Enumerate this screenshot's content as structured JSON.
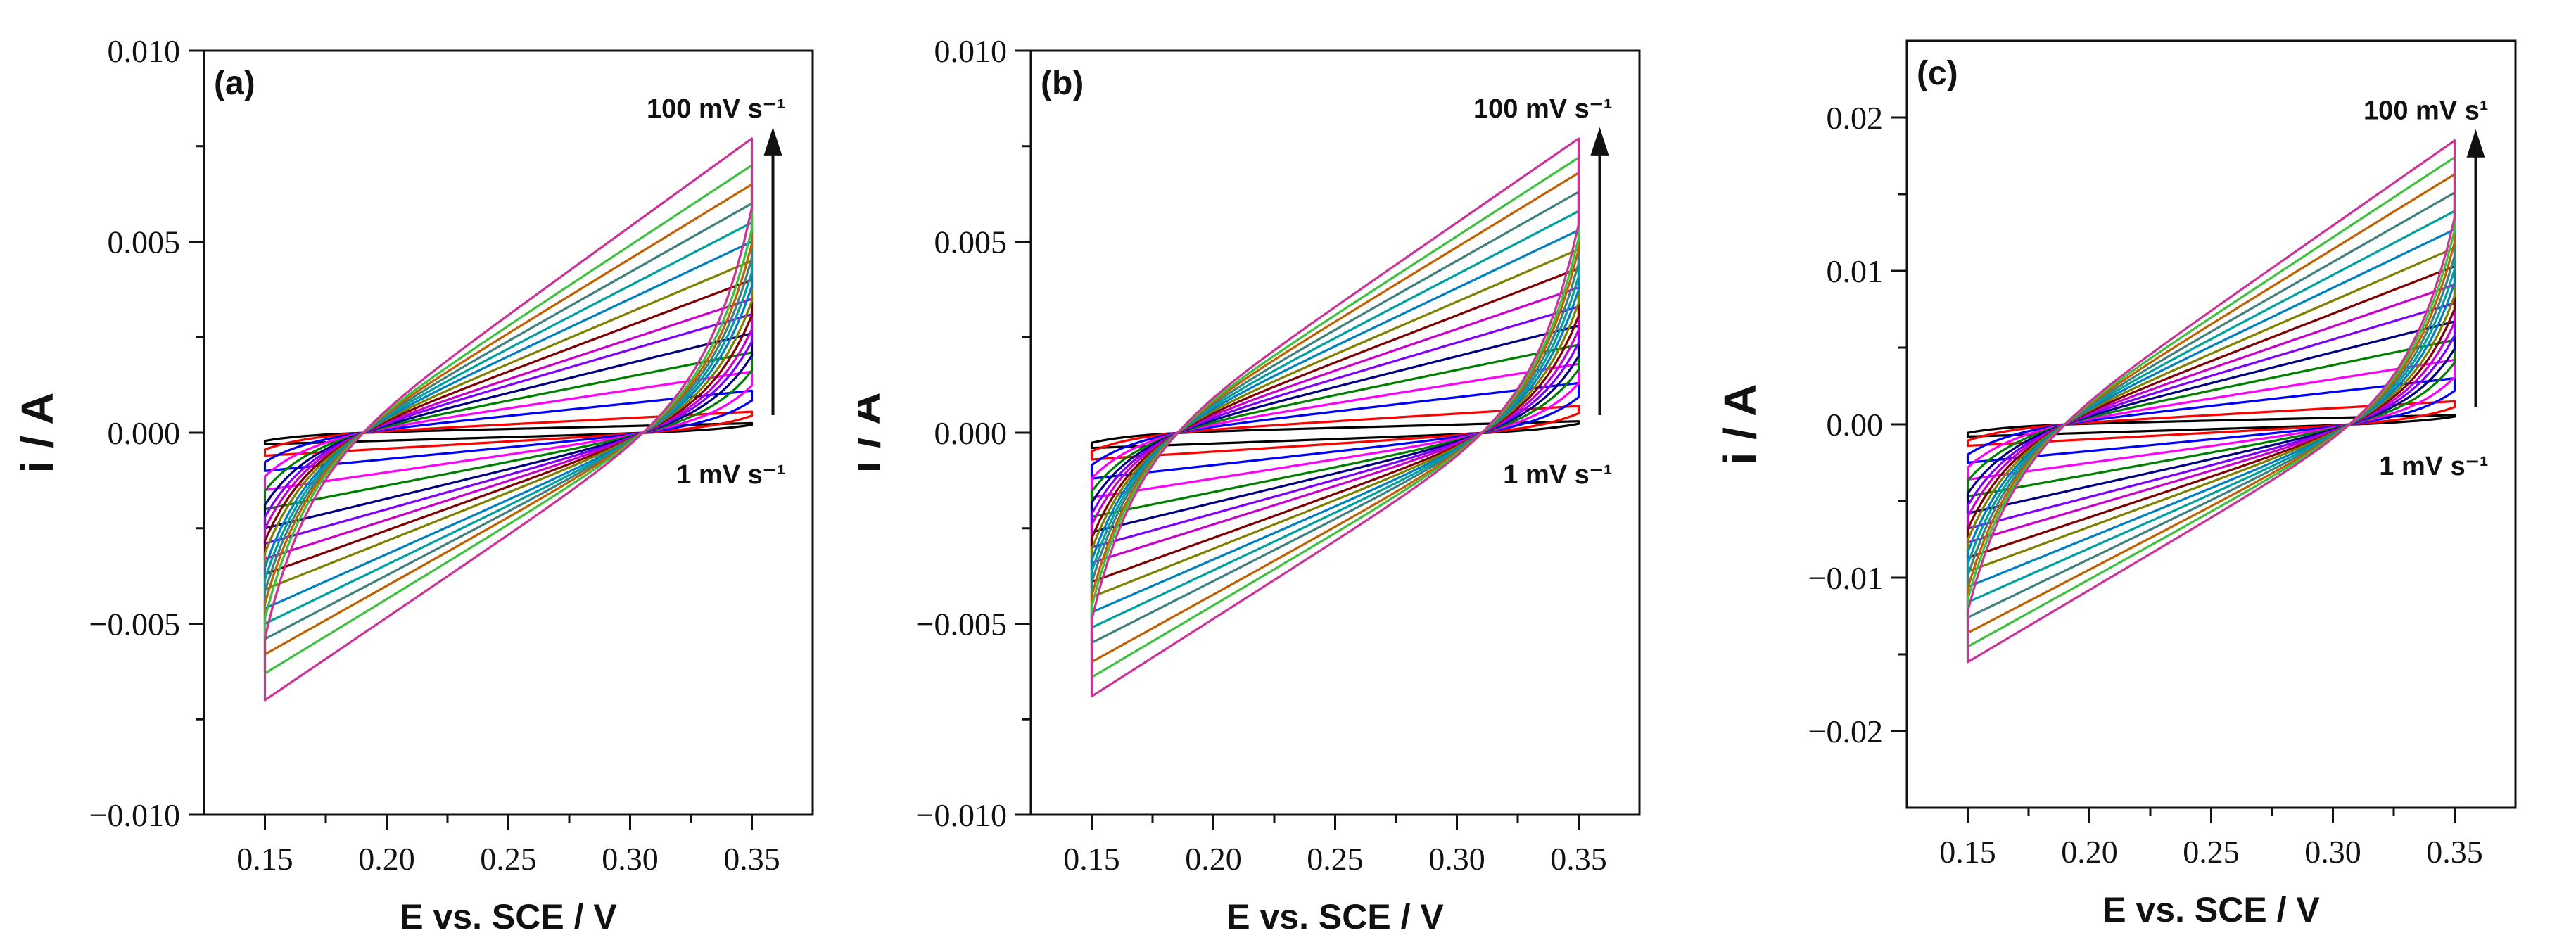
{
  "chart_data": [
    {
      "type": "line",
      "panel_label": "(a)",
      "xlabel": "E vs. SCE / V",
      "ylabel": "i / A",
      "xlim": [
        0.125,
        0.375
      ],
      "ylim": [
        -0.01,
        0.01
      ],
      "xticks": [
        0.15,
        0.2,
        0.25,
        0.3,
        0.35
      ],
      "xtick_labels": [
        "0.15",
        "0.20",
        "0.25",
        "0.30",
        "0.35"
      ],
      "yticks": [
        -0.01,
        -0.005,
        0.0,
        0.005,
        0.01
      ],
      "ytick_labels": [
        "−0.010",
        "−0.005",
        "0.000",
        "0.005",
        "0.010"
      ],
      "annotation_top": "100 mV s⁻¹",
      "annotation_bottom": "1 mV s⁻¹",
      "cv": {
        "e_min": 0.15,
        "e_max": 0.35,
        "cross_low": 0.183,
        "cross_high": 0.312,
        "i_max_end": 0.0077,
        "i_min_start": -0.007
      },
      "series": [
        {
          "color": "#000000",
          "values": [
            0.00025,
            -0.0003
          ]
        },
        {
          "color": "#ff0000",
          "values": [
            0.00055,
            -0.0006
          ]
        },
        {
          "color": "#0000ff",
          "values": [
            0.0011,
            -0.001
          ]
        },
        {
          "color": "#ff00ff",
          "values": [
            0.0016,
            -0.0015
          ]
        },
        {
          "color": "#008000",
          "values": [
            0.0021,
            -0.002
          ]
        },
        {
          "color": "#000080",
          "values": [
            0.0026,
            -0.0025
          ]
        },
        {
          "color": "#8000ff",
          "values": [
            0.0031,
            -0.0029
          ]
        },
        {
          "color": "#cc00cc",
          "values": [
            0.0035,
            -0.0033
          ]
        },
        {
          "color": "#800000",
          "values": [
            0.004,
            -0.0037
          ]
        },
        {
          "color": "#808000",
          "values": [
            0.0045,
            -0.0041
          ]
        },
        {
          "color": "#0080c0",
          "values": [
            0.005,
            -0.0046
          ]
        },
        {
          "color": "#00a0a0",
          "values": [
            0.0055,
            -0.005
          ]
        },
        {
          "color": "#408080",
          "values": [
            0.006,
            -0.0054
          ]
        },
        {
          "color": "#c06000",
          "values": [
            0.0065,
            -0.0058
          ]
        },
        {
          "color": "#40c040",
          "values": [
            0.007,
            -0.0063
          ]
        },
        {
          "color": "#cc3399",
          "values": [
            0.0077,
            -0.007
          ]
        }
      ]
    },
    {
      "type": "line",
      "panel_label": "(b)",
      "xlabel": "E vs. SCE / V",
      "ylabel": "i / A",
      "xlim": [
        0.125,
        0.375
      ],
      "ylim": [
        -0.01,
        0.01
      ],
      "xticks": [
        0.15,
        0.2,
        0.25,
        0.3,
        0.35
      ],
      "xtick_labels": [
        "0.15",
        "0.20",
        "0.25",
        "0.30",
        "0.35"
      ],
      "yticks": [
        -0.01,
        -0.005,
        0.0,
        0.005,
        0.01
      ],
      "ytick_labels": [
        "−0.010",
        "−0.005",
        "0.000",
        "0.005",
        "0.010"
      ],
      "annotation_top": "100 mV s⁻¹",
      "annotation_bottom": "1 mV s⁻¹",
      "cv": {
        "e_min": 0.15,
        "e_max": 0.35,
        "cross_low": 0.175,
        "cross_high": 0.32,
        "i_max_end": 0.0077,
        "i_min_start": -0.0069
      },
      "series": [
        {
          "color": "#000000",
          "values": [
            0.0003,
            -0.0004
          ]
        },
        {
          "color": "#ff0000",
          "values": [
            0.0007,
            -0.0007
          ]
        },
        {
          "color": "#0000ff",
          "values": [
            0.0013,
            -0.0012
          ]
        },
        {
          "color": "#ff00ff",
          "values": [
            0.0018,
            -0.0017
          ]
        },
        {
          "color": "#008000",
          "values": [
            0.0023,
            -0.0022
          ]
        },
        {
          "color": "#000080",
          "values": [
            0.0028,
            -0.0026
          ]
        },
        {
          "color": "#8000ff",
          "values": [
            0.0033,
            -0.003
          ]
        },
        {
          "color": "#cc00cc",
          "values": [
            0.0038,
            -0.0034
          ]
        },
        {
          "color": "#800000",
          "values": [
            0.0043,
            -0.0039
          ]
        },
        {
          "color": "#808000",
          "values": [
            0.0048,
            -0.0043
          ]
        },
        {
          "color": "#0080c0",
          "values": [
            0.0053,
            -0.0047
          ]
        },
        {
          "color": "#00a0a0",
          "values": [
            0.0058,
            -0.0051
          ]
        },
        {
          "color": "#408080",
          "values": [
            0.0063,
            -0.0055
          ]
        },
        {
          "color": "#c06000",
          "values": [
            0.0068,
            -0.006
          ]
        },
        {
          "color": "#40c040",
          "values": [
            0.0072,
            -0.0064
          ]
        },
        {
          "color": "#cc3399",
          "values": [
            0.0077,
            -0.0069
          ]
        }
      ]
    },
    {
      "type": "line",
      "panel_label": "(c)",
      "xlabel": "E vs. SCE / V",
      "ylabel": "i / A",
      "xlim": [
        0.125,
        0.375
      ],
      "ylim": [
        -0.025,
        0.025
      ],
      "xticks": [
        0.15,
        0.2,
        0.25,
        0.3,
        0.35
      ],
      "xtick_labels": [
        "0.15",
        "0.20",
        "0.25",
        "0.30",
        "0.35"
      ],
      "yticks": [
        -0.02,
        -0.01,
        0.0,
        0.01,
        0.02
      ],
      "ytick_labels": [
        "−0.02",
        "−0.01",
        "0.00",
        "0.01",
        "0.02"
      ],
      "annotation_top": "100 mV s¹",
      "annotation_bottom": "1 mV s⁻¹",
      "cv": {
        "e_min": 0.15,
        "e_max": 0.35,
        "cross_low": 0.183,
        "cross_high": 0.315,
        "i_max_end": 0.0185,
        "i_min_start": -0.0155
      },
      "series": [
        {
          "color": "#000000",
          "values": [
            0.0006,
            -0.0008
          ]
        },
        {
          "color": "#ff0000",
          "values": [
            0.0015,
            -0.0014
          ]
        },
        {
          "color": "#0000ff",
          "values": [
            0.003,
            -0.0025
          ]
        },
        {
          "color": "#ff00ff",
          "values": [
            0.0042,
            -0.0036
          ]
        },
        {
          "color": "#008000",
          "values": [
            0.0055,
            -0.0047
          ]
        },
        {
          "color": "#000080",
          "values": [
            0.0067,
            -0.0058
          ]
        },
        {
          "color": "#8000ff",
          "values": [
            0.0079,
            -0.0068
          ]
        },
        {
          "color": "#cc00cc",
          "values": [
            0.0091,
            -0.0077
          ]
        },
        {
          "color": "#800000",
          "values": [
            0.0103,
            -0.0087
          ]
        },
        {
          "color": "#808000",
          "values": [
            0.0115,
            -0.0096
          ]
        },
        {
          "color": "#0080c0",
          "values": [
            0.0127,
            -0.0106
          ]
        },
        {
          "color": "#00a0a0",
          "values": [
            0.0139,
            -0.0116
          ]
        },
        {
          "color": "#408080",
          "values": [
            0.0151,
            -0.0126
          ]
        },
        {
          "color": "#c06000",
          "values": [
            0.0163,
            -0.0136
          ]
        },
        {
          "color": "#40c040",
          "values": [
            0.0174,
            -0.0145
          ]
        },
        {
          "color": "#cc3399",
          "values": [
            0.0185,
            -0.0155
          ]
        }
      ]
    }
  ]
}
